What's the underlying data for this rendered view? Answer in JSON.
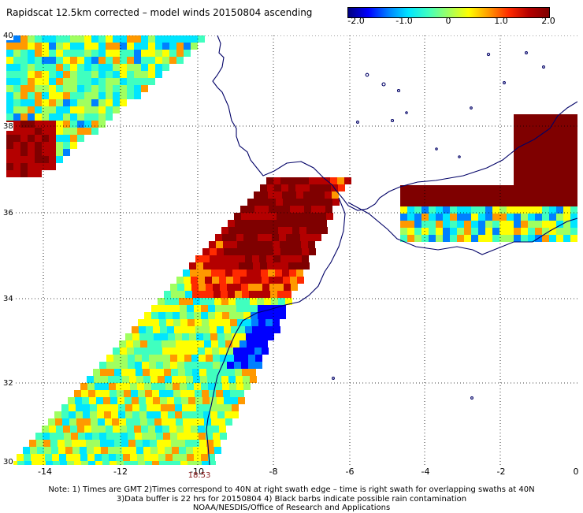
{
  "title": "Rapidscat 12.5km corrected – model winds 20150804 ascending",
  "colorbar": {
    "ticks": [
      "-2.0",
      "-1.0",
      "0",
      "1.0",
      "2.0"
    ],
    "colors": [
      "#00007f",
      "#0000ff",
      "#0080ff",
      "#00e5ff",
      "#40ffbf",
      "#a0ff60",
      "#ffff00",
      "#ff9900",
      "#ff2a00",
      "#b40000",
      "#7f0000"
    ]
  },
  "axes": {
    "lat_labels": [
      "40",
      "38",
      "36",
      "34",
      "32",
      "30"
    ],
    "lon_labels": [
      "-14",
      "-12",
      "-10",
      "-8",
      "-6",
      "-4",
      "-2",
      "0"
    ]
  },
  "pass_time": "18:53",
  "notes": [
    "Note: 1) Times are GMT 2)Times correspond to 40N at right swath edge – time is right swath for overlapping swaths at 40N",
    "3)Data buffer is 22 hrs for 20150804 4) Black barbs indicate possible rain contamination",
    "NOAA/NESDIS/Office of Research and Applications"
  ],
  "coastline_color": "#000066",
  "grid_color": "#000000"
}
